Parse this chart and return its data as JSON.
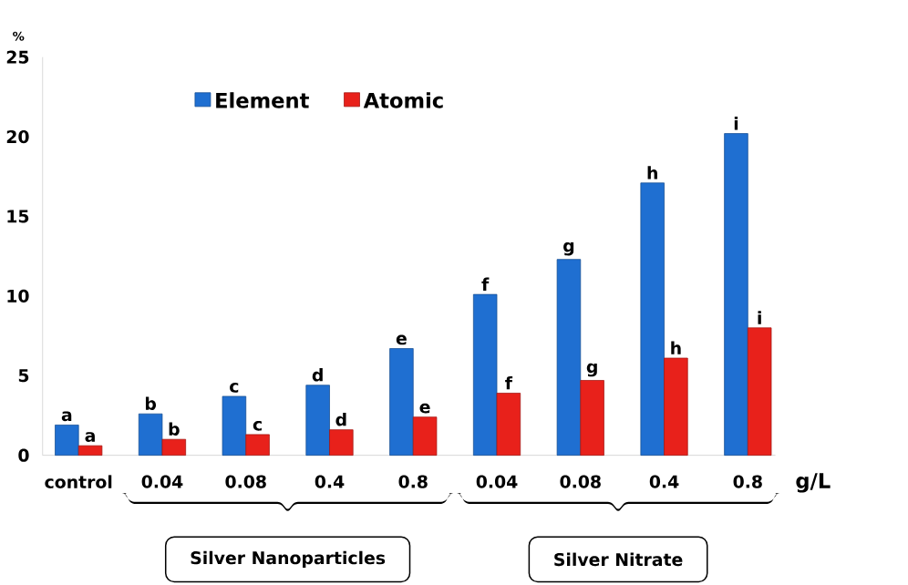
{
  "chart_data": {
    "type": "bar",
    "ylabel": "%",
    "xlabel": "g/L",
    "categories": [
      "control",
      "0.04",
      "0.08",
      "0.4",
      "0.8",
      "0.04",
      "0.08",
      "0.4",
      "0.8"
    ],
    "series": [
      {
        "name": "Element",
        "color": "#1f6fd1",
        "values": [
          1.9,
          2.6,
          3.7,
          4.4,
          6.7,
          10.1,
          12.3,
          17.1,
          20.2
        ],
        "value_labels": [
          "a",
          "b",
          "c",
          "d",
          "e",
          "f",
          "g",
          "h",
          "i"
        ]
      },
      {
        "name": "Atomic",
        "color": "#e8211b",
        "values": [
          0.6,
          1.0,
          1.3,
          1.6,
          2.4,
          3.9,
          4.7,
          6.1,
          8.0
        ],
        "value_labels": [
          "a",
          "b",
          "c",
          "d",
          "e",
          "f",
          "g",
          "h",
          "i"
        ]
      }
    ],
    "ylim": [
      0,
      25
    ],
    "yticks": [
      0,
      5,
      10,
      15,
      20,
      25
    ],
    "legend": "top left",
    "grid": false,
    "annotations": [
      "Silver Nanoparticles",
      "Silver Nitrate"
    ]
  }
}
